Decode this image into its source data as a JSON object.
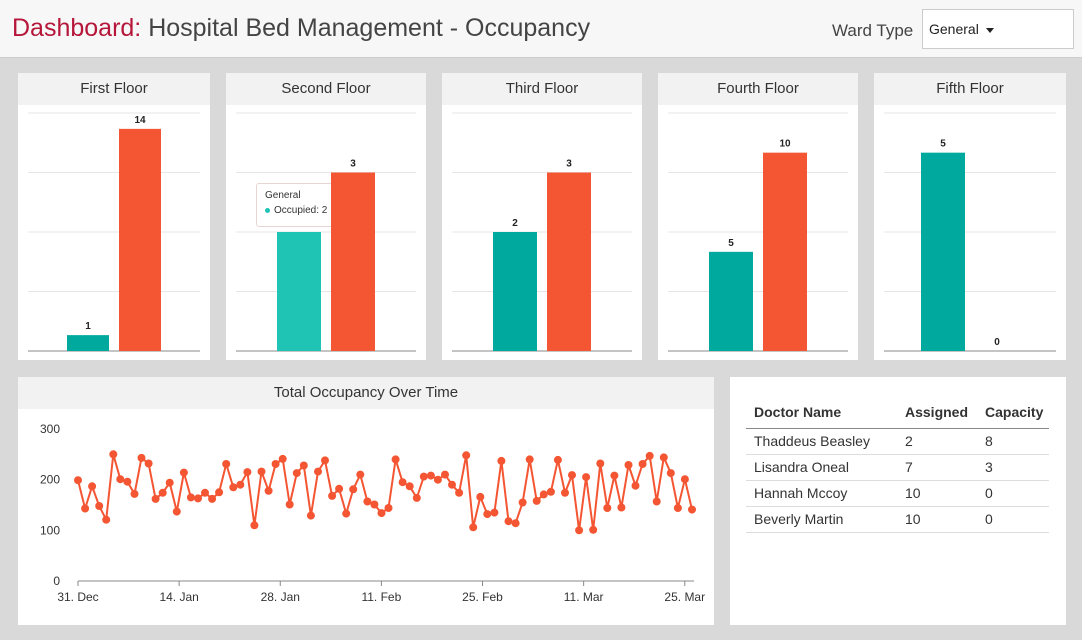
{
  "header": {
    "title_prefix": "Dashboard:",
    "title_main": " Hospital Bed Management - Occupancy",
    "ward_label": "Ward Type",
    "ward_selected": "General"
  },
  "colors": {
    "available": "#00a99d",
    "occupied": "#f45532",
    "hover": "#1fc4b5",
    "title_accent": "#b5163a"
  },
  "floors": [
    {
      "title": "First Floor",
      "chart_data": {
        "type": "bar",
        "categories": [
          "General"
        ],
        "series": [
          {
            "name": "Occupied",
            "values": [
              1
            ]
          },
          {
            "name": "Capacity",
            "values": [
              14
            ]
          }
        ],
        "ylim": [
          0,
          15
        ],
        "value_labels": [
          "1",
          "14"
        ]
      }
    },
    {
      "title": "Second Floor",
      "chart_data": {
        "type": "bar",
        "categories": [
          "General"
        ],
        "series": [
          {
            "name": "Occupied",
            "values": [
              2
            ]
          },
          {
            "name": "Capacity",
            "values": [
              3
            ]
          }
        ],
        "ylim": [
          0,
          4
        ],
        "value_labels": [
          "2",
          "3"
        ]
      }
    },
    {
      "title": "Third Floor",
      "chart_data": {
        "type": "bar",
        "categories": [
          "General"
        ],
        "series": [
          {
            "name": "Occupied",
            "values": [
              2
            ]
          },
          {
            "name": "Capacity",
            "values": [
              3
            ]
          }
        ],
        "ylim": [
          0,
          4
        ],
        "value_labels": [
          "2",
          "3"
        ]
      }
    },
    {
      "title": "Fourth Floor",
      "chart_data": {
        "type": "bar",
        "categories": [
          "General"
        ],
        "series": [
          {
            "name": "Occupied",
            "values": [
              5
            ]
          },
          {
            "name": "Capacity",
            "values": [
              10
            ]
          }
        ],
        "ylim": [
          0,
          12
        ],
        "value_labels": [
          "5",
          "10"
        ]
      }
    },
    {
      "title": "Fifth Floor",
      "chart_data": {
        "type": "bar",
        "categories": [
          "General"
        ],
        "series": [
          {
            "name": "Occupied",
            "values": [
              5
            ]
          },
          {
            "name": "Capacity",
            "values": [
              0
            ]
          }
        ],
        "ylim": [
          0,
          6
        ],
        "value_labels": [
          "5",
          "0"
        ]
      }
    }
  ],
  "tooltip": {
    "title": "General",
    "label": "Occupied: 2"
  },
  "chart_data": {
    "type": "line",
    "title": "Total Occupancy Over Time",
    "ylim": [
      0,
      300
    ],
    "yticks": [
      "0",
      "100",
      "200",
      "300"
    ],
    "xticks": [
      "31. Dec",
      "14. Jan",
      "28. Jan",
      "11. Feb",
      "25. Feb",
      "11. Mar",
      "25. Mar"
    ],
    "x_range_days": [
      0,
      85
    ],
    "series": [
      {
        "name": "Occupancy",
        "values": [
          199,
          143,
          187,
          148,
          121,
          250,
          201,
          196,
          172,
          243,
          232,
          162,
          174,
          194,
          137,
          214,
          165,
          163,
          174,
          162,
          175,
          231,
          185,
          190,
          215,
          110,
          216,
          178,
          231,
          241,
          151,
          213,
          228,
          129,
          216,
          238,
          168,
          182,
          133,
          181,
          210,
          157,
          151,
          134,
          144,
          240,
          195,
          187,
          164,
          206,
          208,
          200,
          210,
          190,
          174,
          248,
          106,
          166,
          132,
          135,
          237,
          118,
          114,
          155,
          240,
          158,
          171,
          176,
          239,
          174,
          209,
          100,
          205,
          101,
          232,
          144,
          208,
          145,
          229,
          188,
          231,
          247,
          157,
          244,
          213,
          144,
          201,
          141
        ]
      }
    ]
  },
  "table": {
    "headers": [
      "Doctor Name",
      "Assigned",
      "Capacity"
    ],
    "rows": [
      [
        "Thaddeus Beasley",
        "2",
        "8"
      ],
      [
        "Lisandra Oneal",
        "7",
        "3"
      ],
      [
        "Hannah Mccoy",
        "10",
        "0"
      ],
      [
        "Beverly Martin",
        "10",
        "0"
      ]
    ]
  }
}
